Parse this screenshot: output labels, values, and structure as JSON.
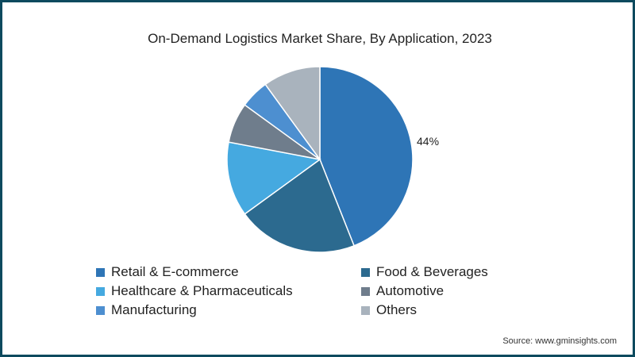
{
  "chart_data": {
    "type": "pie",
    "title": "On-Demand Logistics Market Share, By Application, 2023",
    "categories": [
      "Retail & E-commerce",
      "Food & Beverages",
      "Healthcare & Pharmaceuticals",
      "Automotive",
      "Manufacturing",
      "Others"
    ],
    "values": [
      44,
      21,
      13,
      7,
      5,
      10
    ],
    "colors": [
      "#2e75b6",
      "#2c6a8f",
      "#45a9e0",
      "#6f7d8c",
      "#4d8fd0",
      "#a9b3bd"
    ],
    "annotations": [
      {
        "slice": "Retail & E-commerce",
        "label": "44%"
      }
    ],
    "legend_position": "bottom",
    "start_angle_deg": 0,
    "direction": "clockwise"
  },
  "title": "On-Demand Logistics Market Share, By Application, 2023",
  "annotation_label": "44%",
  "legend": [
    {
      "label": "Retail & E-commerce",
      "color": "#2e75b6"
    },
    {
      "label": "Food & Beverages",
      "color": "#2c6a8f"
    },
    {
      "label": "Healthcare & Pharmaceuticals",
      "color": "#45a9e0"
    },
    {
      "label": "Automotive",
      "color": "#6f7d8c"
    },
    {
      "label": "Manufacturing",
      "color": "#4d8fd0"
    },
    {
      "label": "Others",
      "color": "#a9b3bd"
    }
  ],
  "source": "Source: www.gminsights.com",
  "frame_color": "#0d4a5e"
}
